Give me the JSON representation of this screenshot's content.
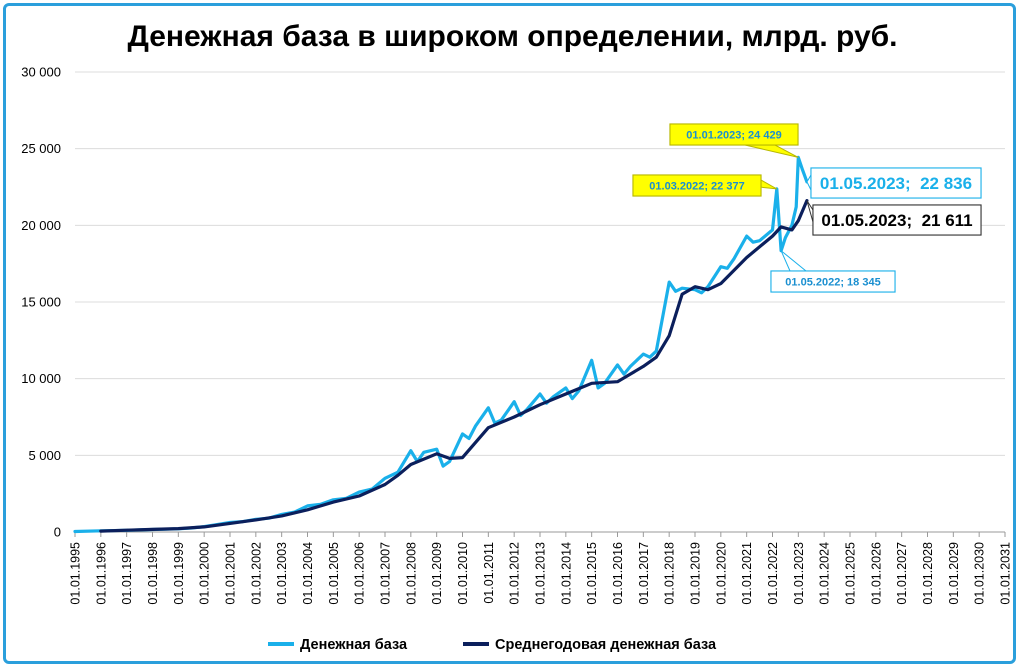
{
  "chart_data": {
    "type": "line",
    "title": "Денежная база в широком определении, млрд. руб.",
    "xlabel": "",
    "ylabel": "",
    "ylim": [
      0,
      30000
    ],
    "xlim": [
      "01.01.1995",
      "01.01.2031"
    ],
    "y_ticks": [
      "0",
      "5 000",
      "10 000",
      "15 000",
      "20 000",
      "25 000",
      "30 000"
    ],
    "x_ticks": [
      "01.01.1995",
      "01.01.1996",
      "01.01.1997",
      "01.01.1998",
      "01.01.1999",
      "01.01.2000",
      "01.01.2001",
      "01.01.2002",
      "01.01.2003",
      "01.01.2004",
      "01.01.2005",
      "01.01.2006",
      "01.01.2007",
      "01.01.2008",
      "01.01.2009",
      "01.01.2010",
      "01.01.2011",
      "01.01.2012",
      "01.01.2013",
      "01.01.2014",
      "01.01.2015",
      "01.01.2016",
      "01.01.2017",
      "01.01.2018",
      "01.01.2019",
      "01.01.2020",
      "01.01.2021",
      "01.01.2022",
      "01.01.2023",
      "01.01.2024",
      "01.01.2025",
      "01.01.2026",
      "01.01.2027",
      "01.01.2028",
      "01.01.2029",
      "01.01.2030",
      "01.01.2031"
    ],
    "grid": "horizontal",
    "legend_position": "bottom",
    "series": [
      {
        "name": "Денежная база",
        "color": "#1ab0ea",
        "points": [
          [
            "01.01.1995",
            30
          ],
          [
            "01.01.1996",
            80
          ],
          [
            "01.01.1997",
            110
          ],
          [
            "01.01.1998",
            160
          ],
          [
            "01.01.1999",
            210
          ],
          [
            "01.07.1999",
            260
          ],
          [
            "01.01.2000",
            350
          ],
          [
            "01.07.2000",
            480
          ],
          [
            "01.01.2001",
            620
          ],
          [
            "01.07.2001",
            680
          ],
          [
            "01.01.2002",
            830
          ],
          [
            "01.07.2002",
            900
          ],
          [
            "01.01.2003",
            1150
          ],
          [
            "01.07.2003",
            1300
          ],
          [
            "01.01.2004",
            1700
          ],
          [
            "01.07.2004",
            1800
          ],
          [
            "01.01.2005",
            2100
          ],
          [
            "01.07.2005",
            2200
          ],
          [
            "01.01.2006",
            2600
          ],
          [
            "01.07.2006",
            2800
          ],
          [
            "01.01.2007",
            3500
          ],
          [
            "01.07.2007",
            3900
          ],
          [
            "01.01.2008",
            5300
          ],
          [
            "01.04.2008",
            4600
          ],
          [
            "01.07.2008",
            5200
          ],
          [
            "01.01.2009",
            5400
          ],
          [
            "01.04.2009",
            4300
          ],
          [
            "01.07.2009",
            4600
          ],
          [
            "01.01.2010",
            6400
          ],
          [
            "01.04.2010",
            6100
          ],
          [
            "01.07.2010",
            6900
          ],
          [
            "01.01.2011",
            8100
          ],
          [
            "01.04.2011",
            7100
          ],
          [
            "01.07.2011",
            7300
          ],
          [
            "01.01.2012",
            8500
          ],
          [
            "01.04.2012",
            7600
          ],
          [
            "01.07.2012",
            8000
          ],
          [
            "01.01.2013",
            9000
          ],
          [
            "01.04.2013",
            8400
          ],
          [
            "01.07.2013",
            8800
          ],
          [
            "01.01.2014",
            9400
          ],
          [
            "01.04.2014",
            8700
          ],
          [
            "01.07.2014",
            9200
          ],
          [
            "01.01.2015",
            11200
          ],
          [
            "01.04.2015",
            9400
          ],
          [
            "01.07.2015",
            9700
          ],
          [
            "01.01.2016",
            10900
          ],
          [
            "01.04.2016",
            10300
          ],
          [
            "01.07.2016",
            10800
          ],
          [
            "01.01.2017",
            11600
          ],
          [
            "01.04.2017",
            11400
          ],
          [
            "01.07.2017",
            11800
          ],
          [
            "01.01.2018",
            16300
          ],
          [
            "01.04.2018",
            15700
          ],
          [
            "01.07.2018",
            15900
          ],
          [
            "01.01.2019",
            15800
          ],
          [
            "01.04.2019",
            15600
          ],
          [
            "01.07.2019",
            16000
          ],
          [
            "01.01.2020",
            17300
          ],
          [
            "01.04.2020",
            17200
          ],
          [
            "01.07.2020",
            17800
          ],
          [
            "01.01.2021",
            19300
          ],
          [
            "01.04.2021",
            18900
          ],
          [
            "01.07.2021",
            19000
          ],
          [
            "01.01.2022",
            19700
          ],
          [
            "01.03.2022",
            22377
          ],
          [
            "01.05.2022",
            18345
          ],
          [
            "01.07.2022",
            19200
          ],
          [
            "01.10.2022",
            20000
          ],
          [
            "01.12.2022",
            21200
          ],
          [
            "01.01.2023",
            24429
          ],
          [
            "01.03.2023",
            23600
          ],
          [
            "01.05.2023",
            22836
          ]
        ]
      },
      {
        "name": "Среднегодовая денежная база",
        "color": "#0b1f5c",
        "points": [
          [
            "01.01.1996",
            60
          ],
          [
            "01.01.1997",
            120
          ],
          [
            "01.01.1998",
            170
          ],
          [
            "01.01.1999",
            220
          ],
          [
            "01.01.2000",
            330
          ],
          [
            "01.01.2001",
            560
          ],
          [
            "01.01.2002",
            790
          ],
          [
            "01.01.2003",
            1050
          ],
          [
            "01.01.2004",
            1450
          ],
          [
            "01.01.2005",
            1950
          ],
          [
            "01.01.2006",
            2350
          ],
          [
            "01.01.2007",
            3100
          ],
          [
            "01.07.2007",
            3700
          ],
          [
            "01.01.2008",
            4400
          ],
          [
            "01.01.2009",
            5100
          ],
          [
            "01.07.2009",
            4800
          ],
          [
            "01.01.2010",
            4850
          ],
          [
            "01.01.2011",
            6800
          ],
          [
            "01.01.2012",
            7500
          ],
          [
            "01.01.2013",
            8300
          ],
          [
            "01.01.2014",
            9000
          ],
          [
            "01.01.2015",
            9700
          ],
          [
            "01.01.2016",
            9800
          ],
          [
            "01.01.2017",
            10800
          ],
          [
            "01.07.2017",
            11400
          ],
          [
            "01.01.2018",
            12800
          ],
          [
            "01.07.2018",
            15500
          ],
          [
            "01.01.2019",
            16000
          ],
          [
            "01.07.2019",
            15800
          ],
          [
            "01.01.2020",
            16200
          ],
          [
            "01.01.2021",
            17900
          ],
          [
            "01.01.2022",
            19300
          ],
          [
            "01.05.2022",
            19900
          ],
          [
            "01.10.2022",
            19700
          ],
          [
            "01.01.2023",
            20300
          ],
          [
            "01.05.2023",
            21611
          ]
        ]
      }
    ],
    "annotations": [
      {
        "text": "01.01.2023; 24 429",
        "style": "yellow"
      },
      {
        "text": "01.03.2022; 22 377",
        "style": "yellow"
      },
      {
        "text": "01.05.2022; 18 345",
        "style": "white"
      },
      {
        "text": "01.05.2023;  22 836",
        "style": "big-blue"
      },
      {
        "text": "01.05.2023;  21 611",
        "style": "big-dark"
      }
    ]
  }
}
